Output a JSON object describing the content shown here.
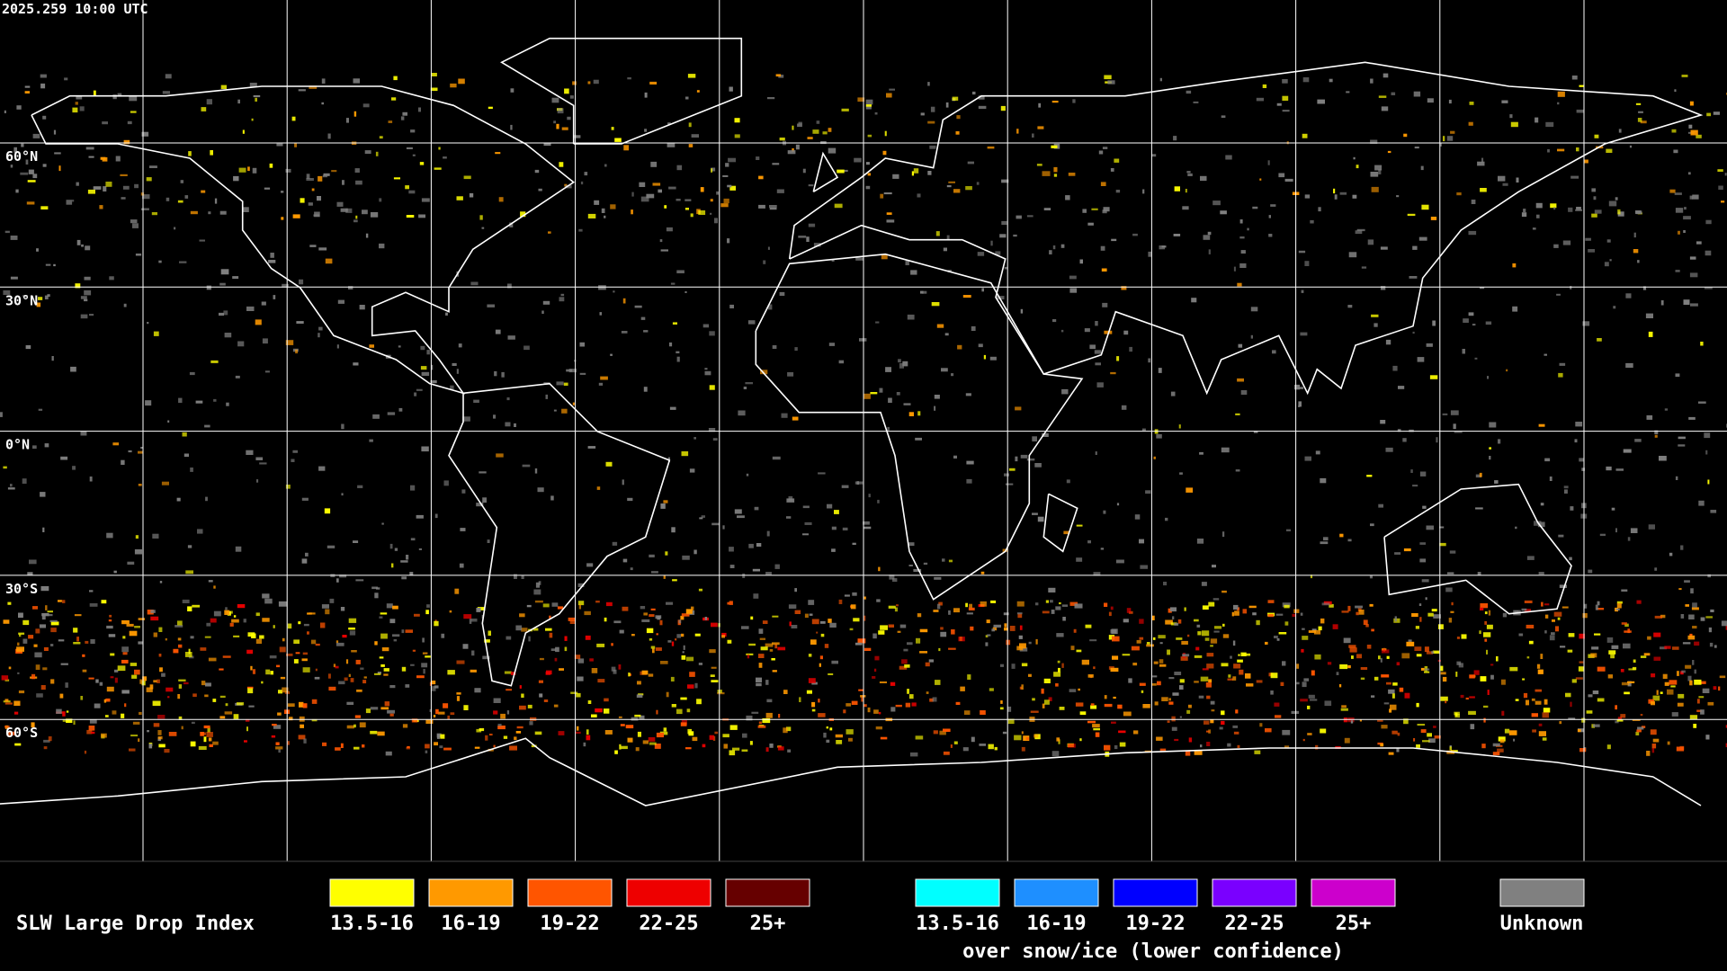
{
  "timestamp": "2025.259 10:00 UTC",
  "latitude_labels": [
    "60°N",
    "30°N",
    "0°N",
    "30°S",
    "60°S"
  ],
  "legend": {
    "title": "SLW Large Drop Index",
    "groups": [
      {
        "items": [
          {
            "label": "13.5-16",
            "color": "#ffff00"
          },
          {
            "label": "16-19",
            "color": "#ff9900"
          },
          {
            "label": "19-22",
            "color": "#ff5500"
          },
          {
            "label": "22-25",
            "color": "#ee0000"
          },
          {
            "label": "25+",
            "color": "#660000"
          }
        ]
      },
      {
        "items": [
          {
            "label": "13.5-16",
            "color": "#00ffff"
          },
          {
            "label": "16-19",
            "color": "#1e8fff"
          },
          {
            "label": "19-22",
            "color": "#0000ff"
          },
          {
            "label": "22-25",
            "color": "#7a00ff"
          },
          {
            "label": "25+",
            "color": "#cc00cc"
          }
        ],
        "caption": "over snow/ice (lower confidence)"
      }
    ],
    "unknown": {
      "label": "Unknown",
      "color": "#808080"
    }
  }
}
